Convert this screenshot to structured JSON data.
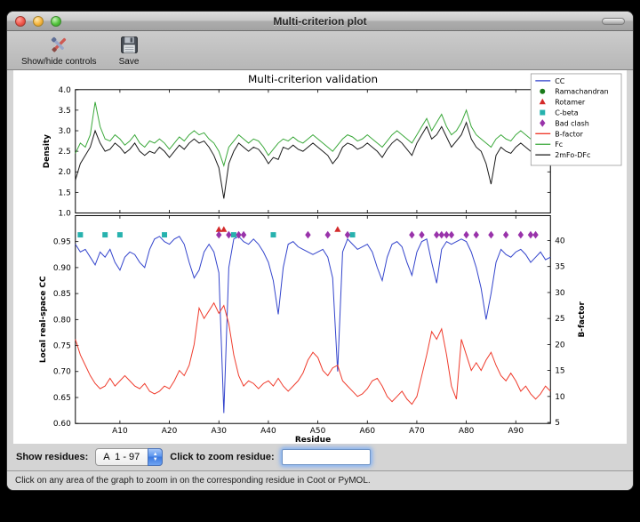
{
  "window": {
    "title": "Multi-criterion plot"
  },
  "toolbar": {
    "buttons": [
      {
        "label": "Show/hide controls"
      },
      {
        "label": "Save"
      }
    ]
  },
  "controls": {
    "show_residues_label": "Show residues:",
    "chain_range_value": "A  1 - 97",
    "zoom_label": "Click to zoom residue:",
    "zoom_value": ""
  },
  "status_bar": {
    "text": "Click on any area of the graph to zoom in on the corresponding residue in Coot or PyMOL."
  },
  "chart_data": {
    "type": "line",
    "title": "Multi-criterion validation",
    "x": {
      "label": "Residue",
      "range": [
        1,
        97
      ],
      "ticks": [
        10,
        20,
        30,
        40,
        50,
        60,
        70,
        80,
        90
      ],
      "tick_labels": [
        "A10",
        "A20",
        "A30",
        "A40",
        "A50",
        "A60",
        "A70",
        "A80",
        "A90"
      ]
    },
    "legend": [
      {
        "label": "CC",
        "type": "line",
        "color": "#3344cc"
      },
      {
        "label": "Ramachandran",
        "type": "circle",
        "color": "#1a7a1a"
      },
      {
        "label": "Rotamer",
        "type": "triangle",
        "color": "#d42a2a"
      },
      {
        "label": "C-beta",
        "type": "square",
        "color": "#27b2ae"
      },
      {
        "label": "Bad clash",
        "type": "diamond",
        "color": "#9933aa"
      },
      {
        "label": "B-factor",
        "type": "line",
        "color": "#ef3b2c"
      },
      {
        "label": "Fc",
        "type": "line",
        "color": "#3aa83a"
      },
      {
        "label": "2mFo-DFc",
        "type": "line",
        "color": "#1a1a1a"
      }
    ],
    "top_plot": {
      "ylabel": "Density",
      "ylim": [
        1.0,
        4.0
      ],
      "yticks": [
        1.0,
        1.5,
        2.0,
        2.5,
        3.0,
        3.5,
        4.0
      ],
      "ytick_labels": [
        "1.0",
        "1.5",
        "2.0",
        "2.5",
        "3.0",
        "3.5",
        "4.0"
      ],
      "series": [
        {
          "name": "Fc",
          "color": "#3aa83a",
          "values": [
            2.45,
            2.7,
            2.6,
            2.9,
            3.7,
            3.1,
            2.8,
            2.75,
            2.9,
            2.8,
            2.65,
            2.75,
            2.9,
            2.7,
            2.6,
            2.75,
            2.7,
            2.8,
            2.7,
            2.55,
            2.7,
            2.85,
            2.75,
            2.9,
            3.0,
            2.9,
            2.95,
            2.8,
            2.7,
            2.5,
            2.15,
            2.6,
            2.75,
            2.9,
            2.8,
            2.7,
            2.8,
            2.75,
            2.6,
            2.4,
            2.55,
            2.7,
            2.8,
            2.75,
            2.85,
            2.75,
            2.7,
            2.8,
            2.9,
            2.8,
            2.7,
            2.6,
            2.5,
            2.65,
            2.8,
            2.9,
            2.85,
            2.75,
            2.8,
            2.9,
            2.8,
            2.7,
            2.6,
            2.75,
            2.9,
            3.0,
            2.9,
            2.8,
            2.7,
            2.9,
            3.1,
            3.3,
            3.0,
            3.2,
            3.4,
            3.1,
            2.9,
            3.0,
            3.2,
            3.5,
            3.1,
            2.9,
            2.8,
            2.7,
            2.6,
            2.8,
            2.9,
            2.8,
            2.75,
            2.9,
            3.0,
            2.9,
            2.8,
            2.9,
            3.0,
            2.9,
            3.3
          ]
        },
        {
          "name": "2mFo-DFc",
          "color": "#1a1a1a",
          "values": [
            1.8,
            2.2,
            2.4,
            2.6,
            3.0,
            2.7,
            2.5,
            2.55,
            2.7,
            2.6,
            2.45,
            2.55,
            2.7,
            2.5,
            2.4,
            2.5,
            2.45,
            2.6,
            2.5,
            2.35,
            2.5,
            2.65,
            2.55,
            2.7,
            2.8,
            2.7,
            2.75,
            2.6,
            2.4,
            2.1,
            1.35,
            2.2,
            2.5,
            2.7,
            2.6,
            2.5,
            2.6,
            2.55,
            2.4,
            2.2,
            2.35,
            2.3,
            2.6,
            2.55,
            2.65,
            2.55,
            2.5,
            2.6,
            2.7,
            2.6,
            2.5,
            2.4,
            2.2,
            2.35,
            2.6,
            2.7,
            2.65,
            2.55,
            2.6,
            2.7,
            2.6,
            2.5,
            2.35,
            2.55,
            2.7,
            2.8,
            2.7,
            2.55,
            2.4,
            2.7,
            2.9,
            3.1,
            2.8,
            2.9,
            3.1,
            2.85,
            2.6,
            2.75,
            2.9,
            3.2,
            2.8,
            2.6,
            2.5,
            2.2,
            1.7,
            2.4,
            2.6,
            2.5,
            2.45,
            2.6,
            2.7,
            2.6,
            2.5,
            2.6,
            2.7,
            2.6,
            3.0
          ]
        }
      ]
    },
    "bottom_plot": {
      "ylabel_left": "Local real-space CC",
      "ylim_left": [
        0.6,
        1.0
      ],
      "yticks_left": [
        0.6,
        0.65,
        0.7,
        0.75,
        0.8,
        0.85,
        0.9,
        0.95
      ],
      "ytick_labels_left": [
        "0.60",
        "0.65",
        "0.70",
        "0.75",
        "0.80",
        "0.85",
        "0.90",
        "0.95"
      ],
      "ylabel_right": "B-factor",
      "ylim_right": [
        4.8,
        44.8
      ],
      "yticks_right": [
        5,
        10,
        15,
        20,
        25,
        30,
        35,
        40
      ],
      "ytick_labels_right": [
        "5",
        "10",
        "15",
        "20",
        "25",
        "30",
        "35",
        "40"
      ],
      "series": [
        {
          "name": "CC",
          "axis": "left",
          "color": "#3344cc",
          "values": [
            0.945,
            0.93,
            0.935,
            0.92,
            0.905,
            0.93,
            0.92,
            0.935,
            0.91,
            0.895,
            0.92,
            0.93,
            0.925,
            0.91,
            0.9,
            0.935,
            0.955,
            0.96,
            0.95,
            0.945,
            0.955,
            0.96,
            0.945,
            0.91,
            0.88,
            0.895,
            0.93,
            0.945,
            0.93,
            0.89,
            0.62,
            0.9,
            0.955,
            0.96,
            0.95,
            0.945,
            0.955,
            0.945,
            0.93,
            0.91,
            0.875,
            0.81,
            0.9,
            0.945,
            0.95,
            0.94,
            0.935,
            0.93,
            0.925,
            0.93,
            0.935,
            0.92,
            0.88,
            0.7,
            0.93,
            0.955,
            0.945,
            0.935,
            0.94,
            0.945,
            0.93,
            0.9,
            0.875,
            0.92,
            0.945,
            0.95,
            0.94,
            0.91,
            0.885,
            0.93,
            0.95,
            0.955,
            0.91,
            0.87,
            0.935,
            0.95,
            0.945,
            0.95,
            0.955,
            0.95,
            0.93,
            0.9,
            0.86,
            0.8,
            0.85,
            0.91,
            0.935,
            0.925,
            0.92,
            0.93,
            0.935,
            0.925,
            0.91,
            0.92,
            0.93,
            0.915,
            0.92
          ]
        },
        {
          "name": "B-factor",
          "axis": "right",
          "color": "#ef3b2c",
          "values": [
            21,
            18,
            16,
            14,
            12.5,
            11.5,
            12,
            13.5,
            12,
            13,
            14,
            13,
            12,
            11.5,
            12.5,
            11,
            10.5,
            11,
            12,
            11.5,
            13,
            15,
            14,
            16,
            20,
            27,
            25,
            26.5,
            28,
            26,
            27.5,
            24,
            18,
            14,
            12,
            13,
            12.5,
            11.5,
            12.5,
            13,
            12,
            13.5,
            12,
            11,
            12,
            13,
            14.5,
            17,
            18.5,
            17.5,
            15,
            14,
            15.5,
            16,
            13,
            12,
            11,
            10,
            10.5,
            11.5,
            13,
            13.5,
            12,
            10,
            9,
            10,
            11,
            9.5,
            8.5,
            10,
            14,
            18,
            22.5,
            21,
            23,
            18,
            12,
            9.5,
            21,
            18,
            15,
            16.5,
            15,
            17,
            18.5,
            16,
            14,
            13,
            14.5,
            13,
            11,
            12,
            10.5,
            9.5,
            10.5,
            12,
            11
          ]
        }
      ],
      "outlier_markers": [
        {
          "name": "Rotamer",
          "shape": "triangle",
          "color": "#d42a2a",
          "y": 0.973,
          "residues": [
            30,
            31,
            54
          ]
        },
        {
          "name": "C-beta",
          "shape": "square",
          "color": "#27b2ae",
          "y": 0.963,
          "residues": [
            2,
            7,
            10,
            19,
            33,
            41,
            57
          ]
        },
        {
          "name": "Bad clash",
          "shape": "diamond",
          "color": "#9933aa",
          "y": 0.963,
          "residues": [
            30,
            32,
            34,
            35,
            48,
            52,
            56,
            69,
            71,
            74,
            75,
            76,
            77,
            80,
            82,
            85,
            88,
            91,
            93,
            94
          ]
        }
      ]
    }
  }
}
